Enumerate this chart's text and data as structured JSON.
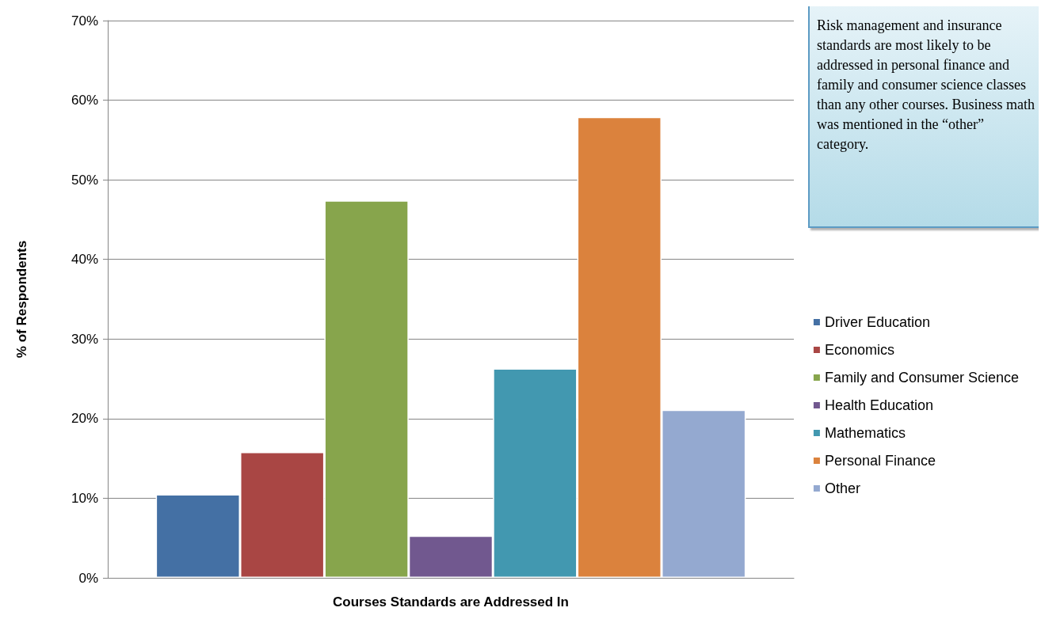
{
  "chart_data": {
    "type": "bar",
    "categories": [
      null
    ],
    "xlabel": "Courses Standards are Addressed In",
    "ylabel": "% of Respondents",
    "series": [
      {
        "name": "Driver Education",
        "color": "#4470a4",
        "values": [
          10.5
        ]
      },
      {
        "name": "Economics",
        "color": "#a94644",
        "values": [
          15.8
        ]
      },
      {
        "name": "Family and Consumer Science",
        "color": "#87a54c",
        "values": [
          47.4
        ]
      },
      {
        "name": "Health Education",
        "color": "#71588f",
        "values": [
          5.3
        ]
      },
      {
        "name": "Mathematics",
        "color": "#4298b0",
        "values": [
          26.3
        ]
      },
      {
        "name": "Personal Finance",
        "color": "#db823d",
        "values": [
          57.9
        ]
      },
      {
        "name": "Other",
        "color": "#94a9d0",
        "values": [
          21.1
        ]
      }
    ],
    "ylim": [
      0,
      70
    ],
    "yticks": [
      {
        "value": 0,
        "label": "0%"
      },
      {
        "value": 10,
        "label": "10%"
      },
      {
        "value": 20,
        "label": "20%"
      },
      {
        "value": 30,
        "label": "30%"
      },
      {
        "value": 40,
        "label": "40%"
      },
      {
        "value": 50,
        "label": "50%"
      },
      {
        "value": 60,
        "label": "60%"
      },
      {
        "value": 70,
        "label": "70%"
      }
    ],
    "grid": "y",
    "legend": "right",
    "annotations": [
      "Risk management and insurance standards are most likely to be addressed in personal finance and family and consumer science classes than any other courses. Business math was mentioned in the “other” category."
    ]
  }
}
